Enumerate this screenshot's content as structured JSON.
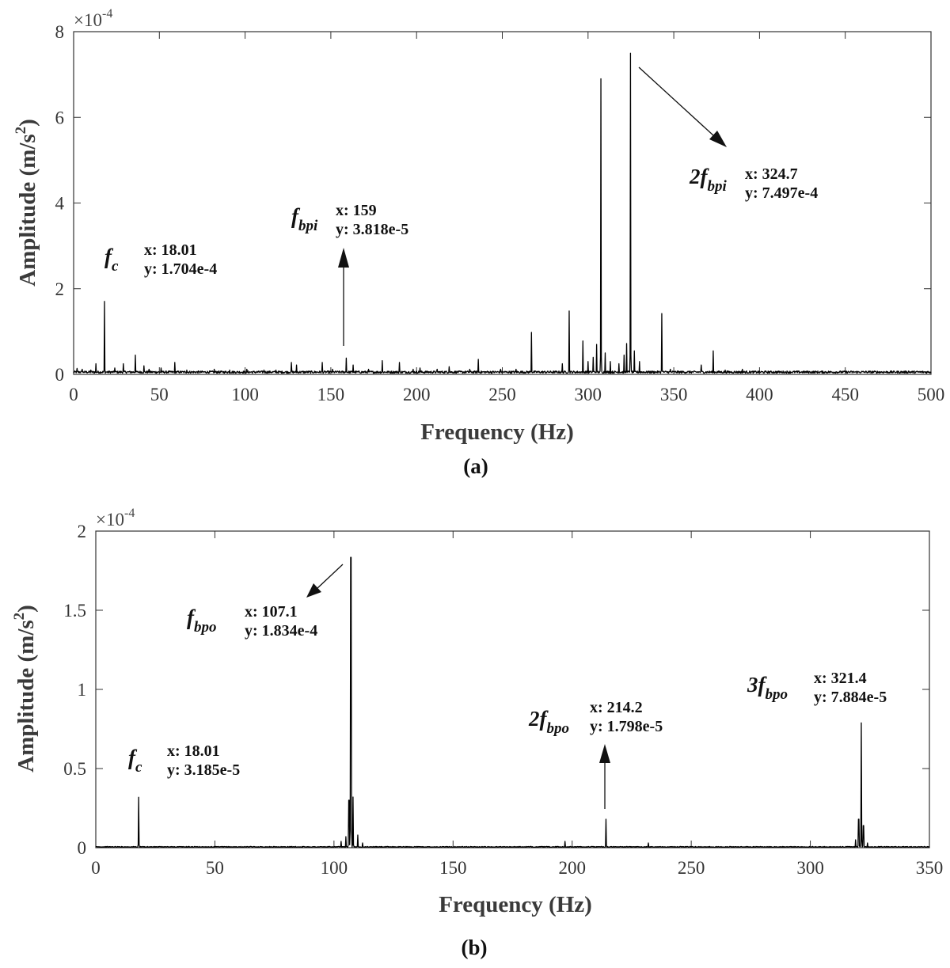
{
  "chart_data": [
    {
      "type": "line",
      "panel_label": "(a)",
      "xlabel": "Frequency (Hz)",
      "ylabel": "Amplitude (m/s",
      "ylabel_sup": "2",
      "ylabel_close": ")",
      "multiplier_base": "×10",
      "multiplier_exp": "-4",
      "xlim": [
        0,
        500
      ],
      "ylim": [
        0,
        8
      ],
      "xticks": [
        "0",
        "50",
        "100",
        "150",
        "200",
        "250",
        "300",
        "350",
        "400",
        "450",
        "500"
      ],
      "yticks": [
        "0",
        "2",
        "4",
        "6",
        "8"
      ],
      "noise_level": 0.08,
      "series": [
        {
          "peaks": [
            [
              2,
              0.14
            ],
            [
              5,
              0.12
            ],
            [
              10,
              0.1
            ],
            [
              13,
              0.25
            ],
            [
              18.01,
              1.704
            ],
            [
              24,
              0.15
            ],
            [
              29,
              0.25
            ],
            [
              36,
              0.45
            ],
            [
              41,
              0.2
            ],
            [
              44,
              0.12
            ],
            [
              51,
              0.15
            ],
            [
              59,
              0.28
            ],
            [
              66,
              0.1
            ],
            [
              82,
              0.12
            ],
            [
              91,
              0.1
            ],
            [
              101,
              0.12
            ],
            [
              111,
              0.1
            ],
            [
              118,
              0.1
            ],
            [
              127,
              0.28
            ],
            [
              130,
              0.22
            ],
            [
              145,
              0.28
            ],
            [
              151,
              0.12
            ],
            [
              159,
              0.3818
            ],
            [
              163,
              0.22
            ],
            [
              172,
              0.12
            ],
            [
              180,
              0.32
            ],
            [
              190,
              0.28
            ],
            [
              198,
              0.12
            ],
            [
              202,
              0.15
            ],
            [
              212,
              0.12
            ],
            [
              219,
              0.18
            ],
            [
              231,
              0.12
            ],
            [
              236,
              0.35
            ],
            [
              249,
              0.12
            ],
            [
              258,
              0.12
            ],
            [
              267,
              0.98
            ],
            [
              285,
              0.25
            ],
            [
              289,
              1.48
            ],
            [
              297,
              0.78
            ],
            [
              300,
              0.3
            ],
            [
              303,
              0.4
            ],
            [
              305,
              0.7
            ],
            [
              307.4,
              6.9
            ],
            [
              310,
              0.5
            ],
            [
              313,
              0.3
            ],
            [
              318,
              0.25
            ],
            [
              321,
              0.45
            ],
            [
              322.5,
              0.72
            ],
            [
              324.7,
              7.497
            ],
            [
              327,
              0.55
            ],
            [
              330,
              0.3
            ],
            [
              343,
              1.42
            ],
            [
              348,
              0.12
            ],
            [
              366,
              0.22
            ],
            [
              373,
              0.55
            ],
            [
              380,
              0.1
            ],
            [
              390,
              0.12
            ],
            [
              405,
              0.06
            ],
            [
              450,
              0.05
            ],
            [
              487,
              0.08
            ]
          ]
        }
      ],
      "annotations": [
        {
          "name_main": "f",
          "name_sub": "c",
          "x_text": "x: 18.01",
          "y_text": "y: 1.704e-4"
        },
        {
          "name_main": "f",
          "name_sub": "bpi",
          "x_text": "x: 159",
          "y_text": "y: 3.818e-5"
        },
        {
          "name_main": "2f",
          "name_sub": "bpi",
          "x_text": "x: 324.7",
          "y_text": "y: 7.497e-4"
        }
      ]
    },
    {
      "type": "line",
      "panel_label": "(b)",
      "xlabel": "Frequency (Hz)",
      "ylabel": "Amplitude (m/s",
      "ylabel_sup": "2",
      "ylabel_close": ")",
      "multiplier_base": "×10",
      "multiplier_exp": "-4",
      "xlim": [
        0,
        350
      ],
      "ylim": [
        0,
        2
      ],
      "xticks": [
        "0",
        "50",
        "100",
        "150",
        "200",
        "250",
        "300",
        "350"
      ],
      "yticks": [
        "0",
        "0.5",
        "1",
        "1.5",
        "2"
      ],
      "ytick_values": [
        0,
        0.5,
        1,
        1.5,
        2
      ],
      "noise_level": 0.008,
      "series": [
        {
          "peaks": [
            [
              18.01,
              0.3185
            ],
            [
              103,
              0.04
            ],
            [
              105,
              0.07
            ],
            [
              106.3,
              0.3
            ],
            [
              107.1,
              1.834
            ],
            [
              108,
              0.32
            ],
            [
              110,
              0.08
            ],
            [
              112,
              0.03
            ],
            [
              197,
              0.04
            ],
            [
              214.2,
              0.1798
            ],
            [
              232,
              0.03
            ],
            [
              319,
              0.05
            ],
            [
              320.3,
              0.18
            ],
            [
              321.4,
              0.7884
            ],
            [
              322.3,
              0.14
            ],
            [
              324,
              0.03
            ]
          ]
        }
      ],
      "annotations": [
        {
          "name_main": "f",
          "name_sub": "c",
          "x_text": "x: 18.01",
          "y_text": "y: 3.185e-5"
        },
        {
          "name_main": "f",
          "name_sub": "bpo",
          "x_text": "x: 107.1",
          "y_text": "y: 1.834e-4"
        },
        {
          "name_main": "2f",
          "name_sub": "bpo",
          "x_text": "x: 214.2",
          "y_text": "y: 1.798e-5"
        },
        {
          "name_main": "3f",
          "name_sub": "bpo",
          "x_text": "x: 321.4",
          "y_text": "y: 7.884e-5"
        }
      ]
    }
  ]
}
